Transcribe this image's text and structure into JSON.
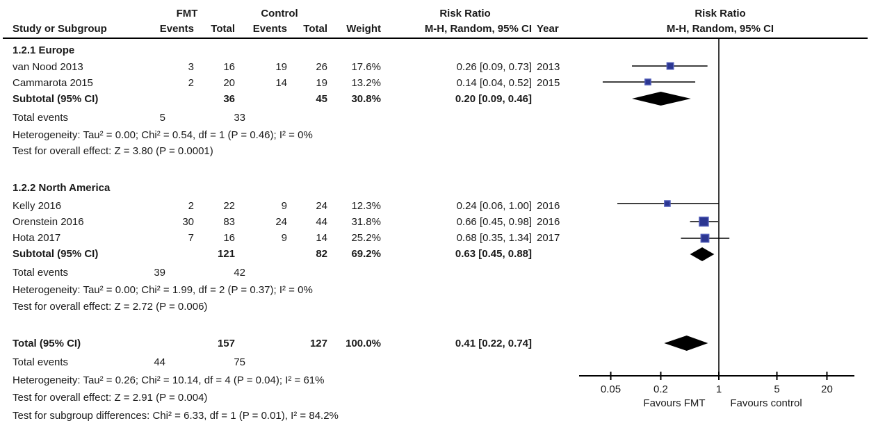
{
  "header": {
    "group_fmt": "FMT",
    "group_control": "Control",
    "risk_ratio_left_line1": "Risk Ratio",
    "risk_ratio_left_line2": "M-H, Random, 95% CI",
    "risk_ratio_right_line1": "Risk Ratio",
    "risk_ratio_right_line2": "M-H, Random, 95% CI",
    "study": "Study or Subgroup",
    "events_fmt": "Events",
    "total_fmt": "Total",
    "events_control": "Events",
    "total_control": "Total",
    "weight": "Weight",
    "year": "Year"
  },
  "europe": {
    "title": "1.2.1 Europe",
    "rows": [
      {
        "study": "van Nood 2013",
        "e1": "3",
        "t1": "16",
        "e2": "19",
        "t2": "26",
        "w": "17.6%",
        "rr": "0.26 [0.09, 0.73]",
        "year": "2013"
      },
      {
        "study": "Cammarota 2015",
        "e1": "2",
        "t1": "20",
        "e2": "14",
        "t2": "19",
        "w": "13.2%",
        "rr": "0.14 [0.04, 0.52]",
        "year": "2015"
      }
    ],
    "subtotal": {
      "study": "Subtotal (95% CI)",
      "t1": "36",
      "t2": "45",
      "w": "30.8%",
      "rr": "0.20 [0.09, 0.46]"
    },
    "total_events_label": "Total events",
    "total_events_fmt": "5",
    "total_events_control": "33",
    "heterogeneity": "Heterogeneity: Tau² = 0.00; Chi² = 0.54, df = 1 (P = 0.46); I² = 0%",
    "overall_effect": "Test for overall effect: Z = 3.80 (P = 0.0001)"
  },
  "north_america": {
    "title": "1.2.2 North America",
    "rows": [
      {
        "study": "Kelly 2016",
        "e1": "2",
        "t1": "22",
        "e2": "9",
        "t2": "24",
        "w": "12.3%",
        "rr": "0.24 [0.06, 1.00]",
        "year": "2016"
      },
      {
        "study": "Orenstein 2016",
        "e1": "30",
        "t1": "83",
        "e2": "24",
        "t2": "44",
        "w": "31.8%",
        "rr": "0.66 [0.45, 0.98]",
        "year": "2016"
      },
      {
        "study": "Hota 2017",
        "e1": "7",
        "t1": "16",
        "e2": "9",
        "t2": "14",
        "w": "25.2%",
        "rr": "0.68 [0.35, 1.34]",
        "year": "2017"
      }
    ],
    "subtotal": {
      "study": "Subtotal (95% CI)",
      "t1": "121",
      "t2": "82",
      "w": "69.2%",
      "rr": "0.63 [0.45, 0.88]"
    },
    "total_events_label": "Total events",
    "total_events_fmt": "39",
    "total_events_control": "42",
    "heterogeneity": "Heterogeneity: Tau² = 0.00; Chi² = 1.99, df = 2 (P = 0.37); I² = 0%",
    "overall_effect": "Test for overall effect: Z = 2.72 (P = 0.006)"
  },
  "total_section": {
    "total_row": {
      "study": "Total (95% CI)",
      "t1": "157",
      "t2": "127",
      "w": "100.0%",
      "rr": "0.41 [0.22, 0.74]"
    },
    "total_events_label": "Total events",
    "total_events_fmt": "44",
    "total_events_control": "75",
    "heterogeneity": "Heterogeneity: Tau² = 0.26; Chi² = 10.14, df = 4 (P = 0.04); I² = 61%",
    "overall_effect": "Test for overall effect: Z = 2.91 (P = 0.004)",
    "subgroup_diff": "Test for subgroup differences: Chi² = 6.33, df = 1 (P = 0.01), I² = 84.2%"
  },
  "axis": {
    "tick_labels": [
      "0.05",
      "0.2",
      "1",
      "5",
      "20"
    ],
    "favours_left": "Favours FMT",
    "favours_right": "Favours control"
  },
  "colors": {
    "square": "#2b3692",
    "square_border": "#505cb8",
    "diamond": "#000000",
    "ci_line": "#000000",
    "null_line": "#3d3d3d",
    "text": "#1a1a1a"
  },
  "chart_data": {
    "type": "forest",
    "effect_measure": "Risk Ratio",
    "method": "M-H, Random, 95% CI",
    "x_scale": "log",
    "x_ticks": [
      0.05,
      0.2,
      1,
      5,
      20
    ],
    "xlim": [
      0.02,
      42
    ],
    "null_value": 1,
    "favours_left": "Favours FMT",
    "favours_right": "Favours control",
    "subgroups": [
      {
        "name": "1.2.1 Europe",
        "studies": [
          {
            "name": "van Nood 2013",
            "events_fmt": 3,
            "total_fmt": 16,
            "events_control": 19,
            "total_control": 26,
            "weight_pct": 17.6,
            "rr": 0.26,
            "ci_low": 0.09,
            "ci_high": 0.73,
            "year": 2013
          },
          {
            "name": "Cammarota 2015",
            "events_fmt": 2,
            "total_fmt": 20,
            "events_control": 14,
            "total_control": 19,
            "weight_pct": 13.2,
            "rr": 0.14,
            "ci_low": 0.04,
            "ci_high": 0.52,
            "year": 2015
          }
        ],
        "subtotal": {
          "total_fmt": 36,
          "total_control": 45,
          "weight_pct": 30.8,
          "rr": 0.2,
          "ci_low": 0.09,
          "ci_high": 0.46
        },
        "total_events_fmt": 5,
        "total_events_control": 33,
        "tau2": 0.0,
        "chi2": 0.54,
        "df": 1,
        "p_heterogeneity": 0.46,
        "i2_pct": 0,
        "z": 3.8,
        "p_overall": 0.0001
      },
      {
        "name": "1.2.2 North America",
        "studies": [
          {
            "name": "Kelly 2016",
            "events_fmt": 2,
            "total_fmt": 22,
            "events_control": 9,
            "total_control": 24,
            "weight_pct": 12.3,
            "rr": 0.24,
            "ci_low": 0.06,
            "ci_high": 1.0,
            "year": 2016
          },
          {
            "name": "Orenstein 2016",
            "events_fmt": 30,
            "total_fmt": 83,
            "events_control": 24,
            "total_control": 44,
            "weight_pct": 31.8,
            "rr": 0.66,
            "ci_low": 0.45,
            "ci_high": 0.98,
            "year": 2016
          },
          {
            "name": "Hota 2017",
            "events_fmt": 7,
            "total_fmt": 16,
            "events_control": 9,
            "total_control": 14,
            "weight_pct": 25.2,
            "rr": 0.68,
            "ci_low": 0.35,
            "ci_high": 1.34,
            "year": 2017
          }
        ],
        "subtotal": {
          "total_fmt": 121,
          "total_control": 82,
          "weight_pct": 69.2,
          "rr": 0.63,
          "ci_low": 0.45,
          "ci_high": 0.88
        },
        "total_events_fmt": 39,
        "total_events_control": 42,
        "tau2": 0.0,
        "chi2": 1.99,
        "df": 2,
        "p_heterogeneity": 0.37,
        "i2_pct": 0,
        "z": 2.72,
        "p_overall": 0.006
      }
    ],
    "total": {
      "total_fmt": 157,
      "total_control": 127,
      "weight_pct": 100.0,
      "rr": 0.41,
      "ci_low": 0.22,
      "ci_high": 0.74,
      "total_events_fmt": 44,
      "total_events_control": 75,
      "tau2": 0.26,
      "chi2": 10.14,
      "df": 4,
      "p_heterogeneity": 0.04,
      "i2_pct": 61,
      "z": 2.91,
      "p_overall": 0.004,
      "subgroup_differences": {
        "chi2": 6.33,
        "df": 1,
        "p": 0.01,
        "i2_pct": 84.2
      }
    }
  }
}
